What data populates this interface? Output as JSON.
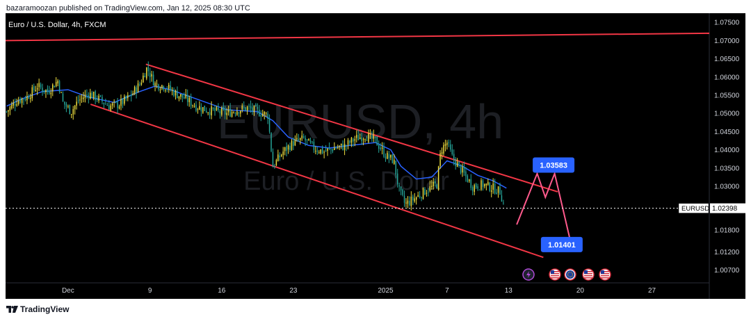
{
  "header": {
    "published_text": "bazaramoozan published on TradingView.com, Jan 12, 2025 08:30 UTC"
  },
  "footer": {
    "brand": "TradingView",
    "logo_icon": "tradingview-logo-icon"
  },
  "chart_data": {
    "type": "candlestick",
    "symbol_title": "Euro / U.S. Dollar, 4h, FXCM",
    "watermark_symbol": "EURUSD, 4h",
    "watermark_name": "Euro / U.S. Dollar",
    "y_ticks": [
      "1.07500",
      "1.07000",
      "1.06500",
      "1.06000",
      "1.05500",
      "1.05000",
      "1.04500",
      "1.04000",
      "1.03500",
      "1.03000",
      "1.01800",
      "1.01200",
      "1.00700"
    ],
    "y_tick_values": [
      1.075,
      1.07,
      1.065,
      1.06,
      1.055,
      1.05,
      1.045,
      1.04,
      1.035,
      1.03,
      1.018,
      1.012,
      1.007
    ],
    "x_ticks": [
      {
        "label": "Dec",
        "day": 0
      },
      {
        "label": "9",
        "day": 8
      },
      {
        "label": "16",
        "day": 15
      },
      {
        "label": "23",
        "day": 22
      },
      {
        "label": "2025",
        "day": 31
      },
      {
        "label": "7",
        "day": 37
      },
      {
        "label": "13",
        "day": 43
      },
      {
        "label": "20",
        "day": 50
      },
      {
        "label": "27",
        "day": 57
      }
    ],
    "current_price": {
      "symbol": "EURUSD",
      "value": "1.02398",
      "y": 1.02398
    },
    "price_range": {
      "start_day": -6.1,
      "end_day": 62.6,
      "max": 1.0775,
      "min": 1.0035
    },
    "closes": [
      {
        "day": -6.0,
        "y": 1.0505
      },
      {
        "day": -5.0,
        "y": 1.0535
      },
      {
        "day": -4.0,
        "y": 1.0545
      },
      {
        "day": -3.0,
        "y": 1.0575
      },
      {
        "day": -2.0,
        "y": 1.056
      },
      {
        "day": -1.0,
        "y": 1.059
      },
      {
        "day": -0.5,
        "y": 1.053
      },
      {
        "day": 0.3,
        "y": 1.0505
      },
      {
        "day": 1.0,
        "y": 1.0535
      },
      {
        "day": 2.0,
        "y": 1.0555
      },
      {
        "day": 3.0,
        "y": 1.054
      },
      {
        "day": 4.0,
        "y": 1.052
      },
      {
        "day": 5.0,
        "y": 1.0525
      },
      {
        "day": 6.0,
        "y": 1.0545
      },
      {
        "day": 7.0,
        "y": 1.058
      },
      {
        "day": 7.7,
        "y": 1.0625
      },
      {
        "day": 8.5,
        "y": 1.058
      },
      {
        "day": 9.5,
        "y": 1.0575
      },
      {
        "day": 10.5,
        "y": 1.0555
      },
      {
        "day": 11.5,
        "y": 1.054
      },
      {
        "day": 12.5,
        "y": 1.052
      },
      {
        "day": 13.5,
        "y": 1.051
      },
      {
        "day": 14.5,
        "y": 1.0505
      },
      {
        "day": 15.5,
        "y": 1.05
      },
      {
        "day": 16.5,
        "y": 1.051
      },
      {
        "day": 17.5,
        "y": 1.0515
      },
      {
        "day": 18.5,
        "y": 1.0505
      },
      {
        "day": 19.5,
        "y": 1.0495
      },
      {
        "day": 20.0,
        "y": 1.0355
      },
      {
        "day": 21.0,
        "y": 1.0395
      },
      {
        "day": 22.0,
        "y": 1.042
      },
      {
        "day": 23.0,
        "y": 1.043
      },
      {
        "day": 24.0,
        "y": 1.0405
      },
      {
        "day": 25.0,
        "y": 1.0395
      },
      {
        "day": 26.0,
        "y": 1.0405
      },
      {
        "day": 27.0,
        "y": 1.041
      },
      {
        "day": 28.0,
        "y": 1.043
      },
      {
        "day": 29.0,
        "y": 1.044
      },
      {
        "day": 30.0,
        "y": 1.0425
      },
      {
        "day": 31.0,
        "y": 1.0385
      },
      {
        "day": 31.8,
        "y": 1.037
      },
      {
        "day": 32.3,
        "y": 1.029
      },
      {
        "day": 32.9,
        "y": 1.025
      },
      {
        "day": 34.0,
        "y": 1.027
      },
      {
        "day": 35.0,
        "y": 1.029
      },
      {
        "day": 36.0,
        "y": 1.0305
      },
      {
        "day": 36.4,
        "y": 1.04
      },
      {
        "day": 37.0,
        "y": 1.042
      },
      {
        "day": 37.5,
        "y": 1.038
      },
      {
        "day": 38.5,
        "y": 1.034
      },
      {
        "day": 39.5,
        "y": 1.03
      },
      {
        "day": 40.5,
        "y": 1.0305
      },
      {
        "day": 41.5,
        "y": 1.0295
      },
      {
        "day": 42.2,
        "y": 1.0285
      },
      {
        "day": 42.6,
        "y": 1.024
      }
    ],
    "moving_average": [
      {
        "day": -6.0,
        "y": 1.052
      },
      {
        "day": -4.5,
        "y": 1.054
      },
      {
        "day": -2.5,
        "y": 1.056
      },
      {
        "day": 0.0,
        "y": 1.0565
      },
      {
        "day": 2.0,
        "y": 1.0545
      },
      {
        "day": 4.5,
        "y": 1.053
      },
      {
        "day": 7.0,
        "y": 1.056
      },
      {
        "day": 8.5,
        "y": 1.0575
      },
      {
        "day": 10.0,
        "y": 1.0565
      },
      {
        "day": 12.5,
        "y": 1.054
      },
      {
        "day": 15.5,
        "y": 1.051
      },
      {
        "day": 18.5,
        "y": 1.0505
      },
      {
        "day": 20.0,
        "y": 1.048
      },
      {
        "day": 21.5,
        "y": 1.0435
      },
      {
        "day": 23.5,
        "y": 1.0412
      },
      {
        "day": 25.5,
        "y": 1.0405
      },
      {
        "day": 27.5,
        "y": 1.0412
      },
      {
        "day": 30.0,
        "y": 1.042
      },
      {
        "day": 31.5,
        "y": 1.04
      },
      {
        "day": 32.5,
        "y": 1.0355
      },
      {
        "day": 34.0,
        "y": 1.032
      },
      {
        "day": 35.5,
        "y": 1.0325
      },
      {
        "day": 37.0,
        "y": 1.037
      },
      {
        "day": 38.5,
        "y": 1.0355
      },
      {
        "day": 40.0,
        "y": 1.033
      },
      {
        "day": 41.5,
        "y": 1.0315
      },
      {
        "day": 42.8,
        "y": 1.0295
      }
    ],
    "channel_upper": {
      "start": {
        "day": 7.6,
        "y": 1.0635
      },
      "end": {
        "day": 47.8,
        "y": 1.0285
      }
    },
    "channel_lower": {
      "start": {
        "day": 2.2,
        "y": 1.0525
      },
      "end": {
        "day": 46.4,
        "y": 1.0105
      }
    },
    "resistance_line": {
      "start": {
        "day": -6.1,
        "y": 1.07
      },
      "end": {
        "day": 62.6,
        "y": 1.072
      }
    },
    "projection_path": [
      {
        "day": 43.8,
        "y": 1.0195
      },
      {
        "day": 45.8,
        "y": 1.0335
      },
      {
        "day": 46.6,
        "y": 1.027
      },
      {
        "day": 47.5,
        "y": 1.0335
      },
      {
        "day": 49.1,
        "y": 1.0143
      }
    ],
    "annotations": [
      {
        "text": "1.03583",
        "day": 47.4,
        "y": 1.03583,
        "pointer": {
          "day": 46.0,
          "y": 1.0355
        }
      },
      {
        "text": "1.01401",
        "day": 48.2,
        "y": 1.01401,
        "pointer": {
          "day": 47.0,
          "y": 1.014
        }
      }
    ],
    "event_icons": [
      "lightning-icon",
      "us-flag-icon",
      "eu-flag-icon",
      "us-flag-icon",
      "us-flag-icon"
    ],
    "colors": {
      "background": "#000000",
      "up_candle": "#f0e040",
      "down_candle": "#26a69a",
      "channel": "#f23645",
      "moving_average": "#2962ff",
      "projection": "#ff5a8c",
      "label_bg": "#2962ff",
      "grid_text": "#d1d4dc"
    }
  }
}
